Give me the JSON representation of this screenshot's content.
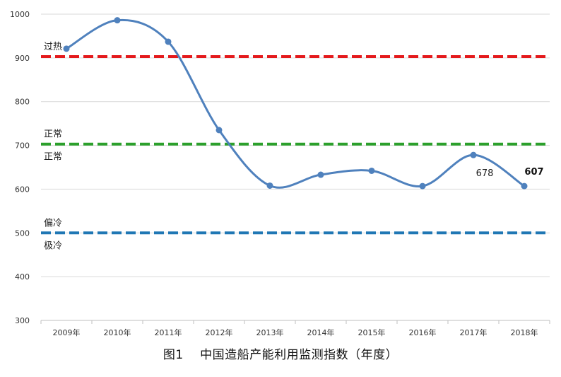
{
  "chart_data": {
    "type": "line",
    "title": "",
    "xlabel": "",
    "ylabel": "",
    "categories": [
      "2009年",
      "2010年",
      "2011年",
      "2012年",
      "2013年",
      "2014年",
      "2015年",
      "2016年",
      "2017年",
      "2018年"
    ],
    "series": [
      {
        "values": [
          921,
          986,
          937,
          735,
          608,
          633,
          642,
          607,
          678,
          607
        ],
        "color": "#4f81bd"
      }
    ],
    "ylim": [
      300,
      1000
    ],
    "yticks": [
      "300",
      "400",
      "500",
      "600",
      "700",
      "800",
      "900",
      "1000"
    ],
    "grid": "horizontal",
    "reference_lines": [
      {
        "value": 903,
        "color": "#e41a1c",
        "style": "dashed"
      },
      {
        "value": 703,
        "color": "#2ca02c",
        "style": "dashed"
      },
      {
        "value": 500,
        "color": "#1f77b4",
        "style": "dashed"
      }
    ],
    "zone_labels": [
      {
        "text": "过热",
        "near": 903,
        "side": "above"
      },
      {
        "text": "正常",
        "near": 703,
        "side": "above"
      },
      {
        "text": "正常",
        "near": 703,
        "side": "below"
      },
      {
        "text": "偏冷",
        "near": 500,
        "side": "above"
      },
      {
        "text": "极冷",
        "near": 500,
        "side": "below"
      }
    ],
    "data_labels": [
      {
        "category": "2017年",
        "text": "678",
        "bold": false
      },
      {
        "category": "2018年",
        "text": "607",
        "bold": true
      }
    ],
    "legend": "none"
  },
  "caption": "图1　 中国造船产能利用监测指数（年度）"
}
